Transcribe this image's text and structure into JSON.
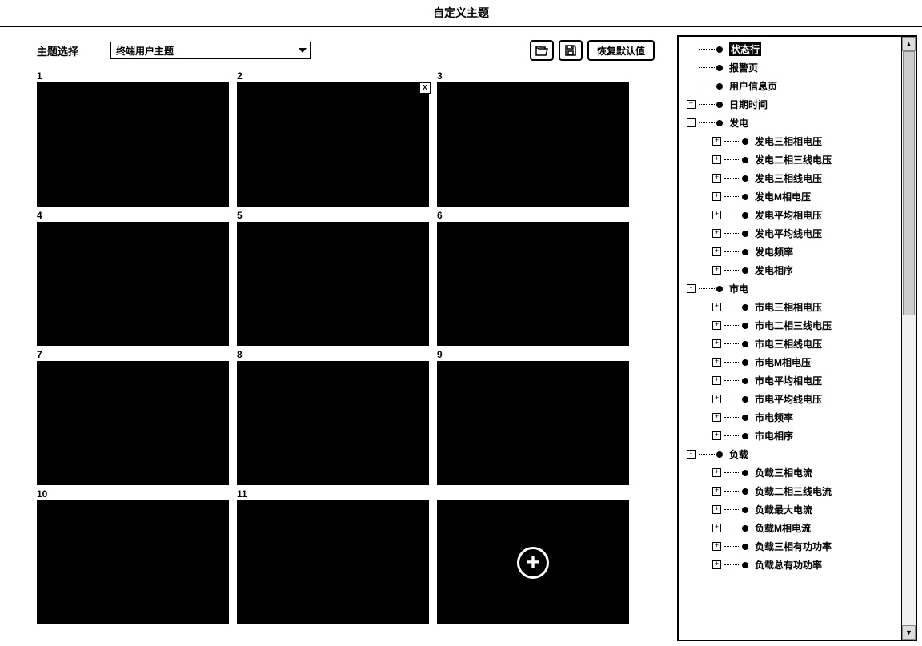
{
  "title": "自定义主题",
  "toolbar": {
    "label": "主题选择",
    "select_value": "终端用户主题",
    "restore_label": "恢复默认值"
  },
  "grid": {
    "cells": [
      {
        "num": "1",
        "active": false
      },
      {
        "num": "2",
        "active": true
      },
      {
        "num": "3",
        "active": false
      },
      {
        "num": "4",
        "active": false
      },
      {
        "num": "5",
        "active": false
      },
      {
        "num": "6",
        "active": false
      },
      {
        "num": "7",
        "active": false
      },
      {
        "num": "8",
        "active": false
      },
      {
        "num": "9",
        "active": false
      },
      {
        "num": "10",
        "active": false
      },
      {
        "num": "11",
        "active": false
      }
    ],
    "mini_buttons": [
      "|◀",
      "◀|",
      "▶|",
      "⇔",
      "X"
    ],
    "side_button": "X"
  },
  "tree": [
    {
      "level": 0,
      "expander": "",
      "label": "状态行",
      "selected": true
    },
    {
      "level": 0,
      "expander": "",
      "label": "报警页"
    },
    {
      "level": 0,
      "expander": "",
      "label": "用户信息页"
    },
    {
      "level": 0,
      "expander": "+",
      "label": "日期时间"
    },
    {
      "level": 0,
      "expander": "-",
      "label": "发电"
    },
    {
      "level": 1,
      "expander": "+",
      "label": "发电三相相电压"
    },
    {
      "level": 1,
      "expander": "+",
      "label": "发电二相三线电压"
    },
    {
      "level": 1,
      "expander": "+",
      "label": "发电三相线电压"
    },
    {
      "level": 1,
      "expander": "+",
      "label": "发电M相电压"
    },
    {
      "level": 1,
      "expander": "+",
      "label": "发电平均相电压"
    },
    {
      "level": 1,
      "expander": "+",
      "label": "发电平均线电压"
    },
    {
      "level": 1,
      "expander": "+",
      "label": "发电频率"
    },
    {
      "level": 1,
      "expander": "+",
      "label": "发电相序"
    },
    {
      "level": 0,
      "expander": "-",
      "label": "市电"
    },
    {
      "level": 1,
      "expander": "+",
      "label": "市电三相相电压"
    },
    {
      "level": 1,
      "expander": "+",
      "label": "市电二相三线电压"
    },
    {
      "level": 1,
      "expander": "+",
      "label": "市电三相线电压"
    },
    {
      "level": 1,
      "expander": "+",
      "label": "市电M相电压"
    },
    {
      "level": 1,
      "expander": "+",
      "label": "市电平均相电压"
    },
    {
      "level": 1,
      "expander": "+",
      "label": "市电平均线电压"
    },
    {
      "level": 1,
      "expander": "+",
      "label": "市电频率"
    },
    {
      "level": 1,
      "expander": "+",
      "label": "市电相序"
    },
    {
      "level": 0,
      "expander": "-",
      "label": "负载"
    },
    {
      "level": 1,
      "expander": "+",
      "label": "负载三相电流"
    },
    {
      "level": 1,
      "expander": "+",
      "label": "负载二相三线电流"
    },
    {
      "level": 1,
      "expander": "+",
      "label": "负载最大电流"
    },
    {
      "level": 1,
      "expander": "+",
      "label": "负载M相电流"
    },
    {
      "level": 1,
      "expander": "+",
      "label": "负载三相有功功率"
    },
    {
      "level": 1,
      "expander": "+",
      "label": "负载总有功功率"
    }
  ]
}
